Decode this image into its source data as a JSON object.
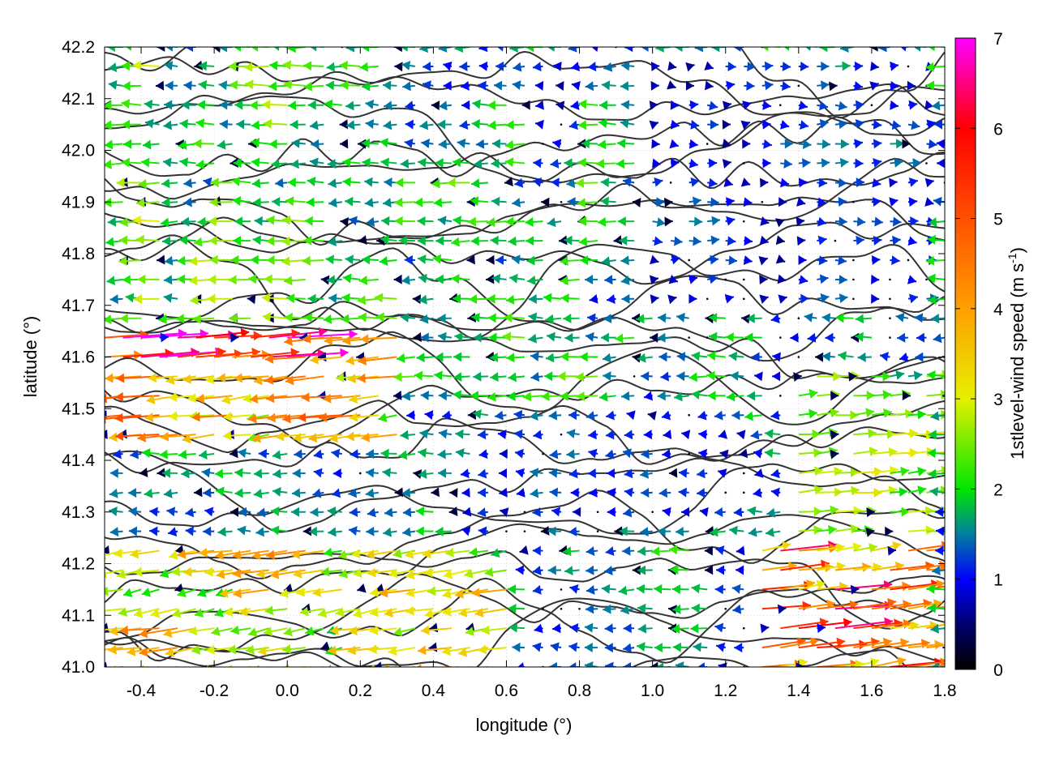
{
  "chart_data": {
    "type": "vector-field",
    "xlabel": "longitude (°)",
    "ylabel": "latitude (°)",
    "xlim": [
      -0.5,
      1.8
    ],
    "ylim": [
      41.0,
      42.2
    ],
    "x_ticks": [
      "-0.4",
      "-0.2",
      "0.0",
      "0.2",
      "0.4",
      "0.6",
      "0.8",
      "1.0",
      "1.2",
      "1.4",
      "1.6",
      "1.8"
    ],
    "x_tick_values": [
      -0.4,
      -0.2,
      0.0,
      0.2,
      0.4,
      0.6,
      0.8,
      1.0,
      1.2,
      1.4,
      1.6,
      1.8
    ],
    "y_ticks": [
      "41.0",
      "41.1",
      "41.2",
      "41.3",
      "41.4",
      "41.5",
      "41.6",
      "41.7",
      "41.8",
      "41.9",
      "42.0",
      "42.1",
      "42.2"
    ],
    "y_tick_values": [
      41.0,
      41.1,
      41.2,
      41.3,
      41.4,
      41.5,
      41.6,
      41.7,
      41.8,
      41.9,
      42.0,
      42.1,
      42.2
    ],
    "colorbar": {
      "label": "1stlevel-wind speed (m s",
      "label_sup": "-1",
      "label_end": ")",
      "ticks": [
        "0",
        "1",
        "2",
        "3",
        "4",
        "5",
        "6",
        "7"
      ],
      "tick_values": [
        0,
        1,
        2,
        3,
        4,
        5,
        6,
        7
      ],
      "range": [
        0,
        7
      ],
      "stops": [
        {
          "v": 0,
          "color": "#000000"
        },
        {
          "v": 0.5,
          "color": "#00006e"
        },
        {
          "v": 1.0,
          "color": "#0000ff"
        },
        {
          "v": 1.5,
          "color": "#007f9f"
        },
        {
          "v": 2.0,
          "color": "#00e600"
        },
        {
          "v": 3.0,
          "color": "#e6f000"
        },
        {
          "v": 4.0,
          "color": "#ff9f00"
        },
        {
          "v": 5.0,
          "color": "#ff5000"
        },
        {
          "v": 6.0,
          "color": "#ff0000"
        },
        {
          "v": 6.5,
          "color": "#ff0080"
        },
        {
          "v": 7.0,
          "color": "#ff00ff"
        }
      ]
    },
    "grid": true,
    "field": {
      "description_of_pattern": "gridded wind vectors every ~0.05° lon × ~0.037° lat; westward (~180°) flow dominates west and centre; eastward flow in the south-east and east edge; strongest (4–6 m/s) near the west edge at 41.5–41.6° and in the south-east corner",
      "regions": [
        {
          "lon": [
            -0.5,
            0.3
          ],
          "lat": [
            41.45,
            41.65
          ],
          "u": -3.5,
          "v": -0.4
        },
        {
          "lon": [
            -0.5,
            0.0
          ],
          "lat": [
            41.6,
            41.66
          ],
          "u": 5.5,
          "v": 0.5
        },
        {
          "lon": [
            -0.5,
            0.6
          ],
          "lat": [
            41.0,
            41.25
          ],
          "u": -3.2,
          "v": -0.5
        },
        {
          "lon": [
            -0.5,
            0.3
          ],
          "lat": [
            41.65,
            42.2
          ],
          "u": -2.0,
          "v": 0.0
        },
        {
          "lon": [
            0.3,
            1.0
          ],
          "lat": [
            41.5,
            42.0
          ],
          "u": -1.8,
          "v": 0.0
        },
        {
          "lon": [
            0.6,
            1.3
          ],
          "lat": [
            41.3,
            41.5
          ],
          "u": -1.0,
          "v": 0.0
        },
        {
          "lon": [
            1.0,
            1.8
          ],
          "lat": [
            41.7,
            42.2
          ],
          "u": 1.0,
          "v": 0.0
        },
        {
          "lon": [
            1.3,
            1.8
          ],
          "lat": [
            41.0,
            41.25
          ],
          "u": 4.5,
          "v": 0.6
        },
        {
          "lon": [
            1.4,
            1.8
          ],
          "lat": [
            41.25,
            41.6
          ],
          "u": 2.5,
          "v": 0.2
        }
      ]
    }
  }
}
